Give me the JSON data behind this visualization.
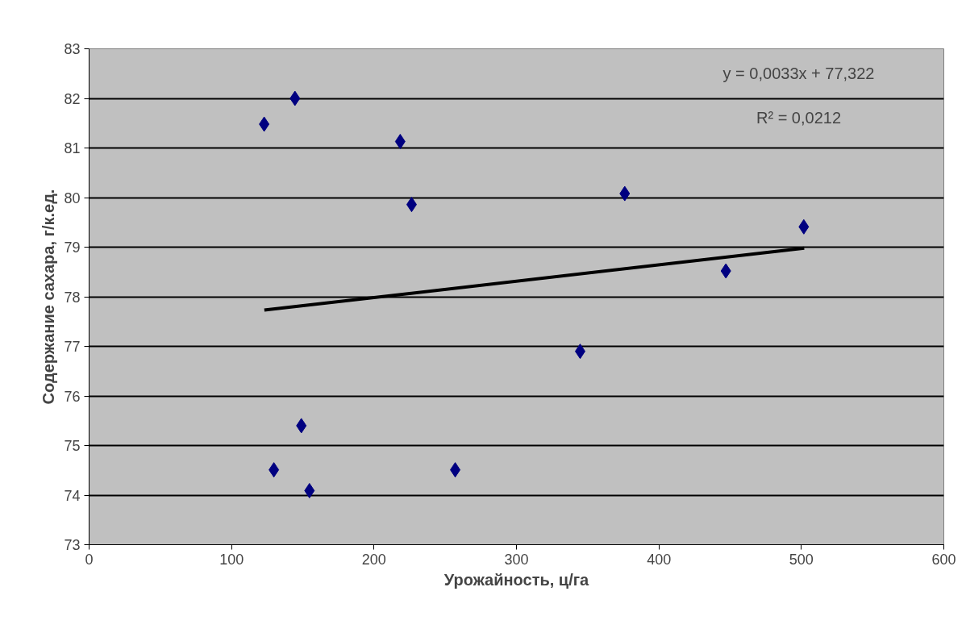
{
  "chart_data": {
    "type": "scatter",
    "xlabel": "Урожайность, ц/га",
    "ylabel": "Содержание сахара, г/к.ед.",
    "x": [
      122.9,
      144.5,
      218.4,
      226.4,
      376,
      501.7,
      447,
      344.7,
      149,
      129.7,
      154.7,
      257
    ],
    "series": [
      {
        "color": "#000080",
        "marker": "diamond",
        "values": [
          81.48,
          82.0,
          81.13,
          79.86,
          80.08,
          79.41,
          78.52,
          76.9,
          75.4,
          74.51,
          74.09,
          74.51
        ]
      },
      {
        "type": "line",
        "marker": "none",
        "color": "#000000",
        "x": [
          123,
          502
        ],
        "values": [
          77.73,
          78.98
        ]
      }
    ],
    "xlim": [
      0,
      600
    ],
    "xticks": [
      0,
      100,
      200,
      300,
      400,
      500,
      600
    ],
    "ylim": [
      73,
      83
    ],
    "yticks": [
      73,
      74,
      75,
      76,
      77,
      78,
      79,
      80,
      81,
      82,
      83
    ],
    "grid": "y",
    "line_style": "solid",
    "annotations": [
      "y = 0,0033x + 77,322",
      "R² = 0,0212"
    ]
  }
}
